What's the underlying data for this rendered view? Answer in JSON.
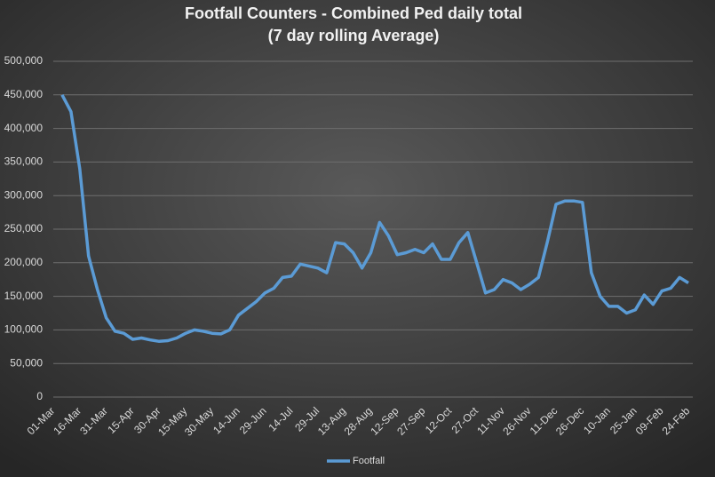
{
  "chart_data": {
    "type": "line",
    "title": "Footfall Counters - Combined Ped daily total",
    "subtitle": "(7 day rolling Average)",
    "categories": [
      "01-Mar",
      null,
      null,
      "16-Mar",
      null,
      null,
      "31-Mar",
      null,
      null,
      "15-Apr",
      null,
      null,
      "30-Apr",
      null,
      null,
      "15-May",
      null,
      null,
      "30-May",
      null,
      null,
      "14-Jun",
      null,
      null,
      "29-Jun",
      null,
      null,
      "14-Jul",
      null,
      null,
      "29-Jul",
      null,
      null,
      "13-Aug",
      null,
      null,
      "28-Aug",
      null,
      null,
      "12-Sep",
      null,
      null,
      "27-Sep",
      null,
      null,
      "12-Oct",
      null,
      null,
      "27-Oct",
      null,
      null,
      "11-Nov",
      null,
      null,
      "26-Nov",
      null,
      null,
      "11-Dec",
      null,
      null,
      "26-Dec",
      null,
      null,
      "10-Jan",
      null,
      null,
      "25-Jan",
      null,
      null,
      "09-Feb",
      null,
      null,
      "24-Feb"
    ],
    "series": [
      {
        "name": "Footfall",
        "color": "#5b9bd5",
        "values": [
          null,
          450000,
          425000,
          340000,
          210000,
          160000,
          118000,
          98000,
          95000,
          86000,
          88000,
          85000,
          83000,
          84000,
          88000,
          95000,
          100000,
          98000,
          95000,
          94000,
          100000,
          122000,
          132000,
          142000,
          155000,
          162000,
          178000,
          180000,
          198000,
          195000,
          192000,
          185000,
          230000,
          228000,
          215000,
          192000,
          215000,
          260000,
          240000,
          212000,
          215000,
          220000,
          215000,
          228000,
          205000,
          205000,
          230000,
          245000,
          200000,
          155000,
          160000,
          175000,
          170000,
          160000,
          168000,
          178000,
          230000,
          287000,
          292000,
          292000,
          290000,
          185000,
          150000,
          135000,
          135000,
          125000,
          130000,
          152000,
          138000,
          158000,
          162000,
          178000,
          170000
        ]
      }
    ],
    "ylim": [
      0,
      500000
    ],
    "yticks": [
      0,
      {
        "value": 50000,
        "label": "50,000"
      },
      {
        "value": 100000,
        "label": "100,000"
      },
      {
        "value": 150000,
        "label": "150,000"
      },
      {
        "value": 200000,
        "label": "200,000"
      },
      {
        "value": 250000,
        "label": "250,000"
      },
      {
        "value": 300000,
        "label": "300,000"
      },
      {
        "value": 350000,
        "label": "350,000"
      },
      {
        "value": 400000,
        "label": "400,000"
      },
      {
        "value": 450000,
        "label": "450,000"
      },
      {
        "value": 500000,
        "label": "500,000"
      }
    ],
    "grid": true,
    "legend": "bottom"
  }
}
